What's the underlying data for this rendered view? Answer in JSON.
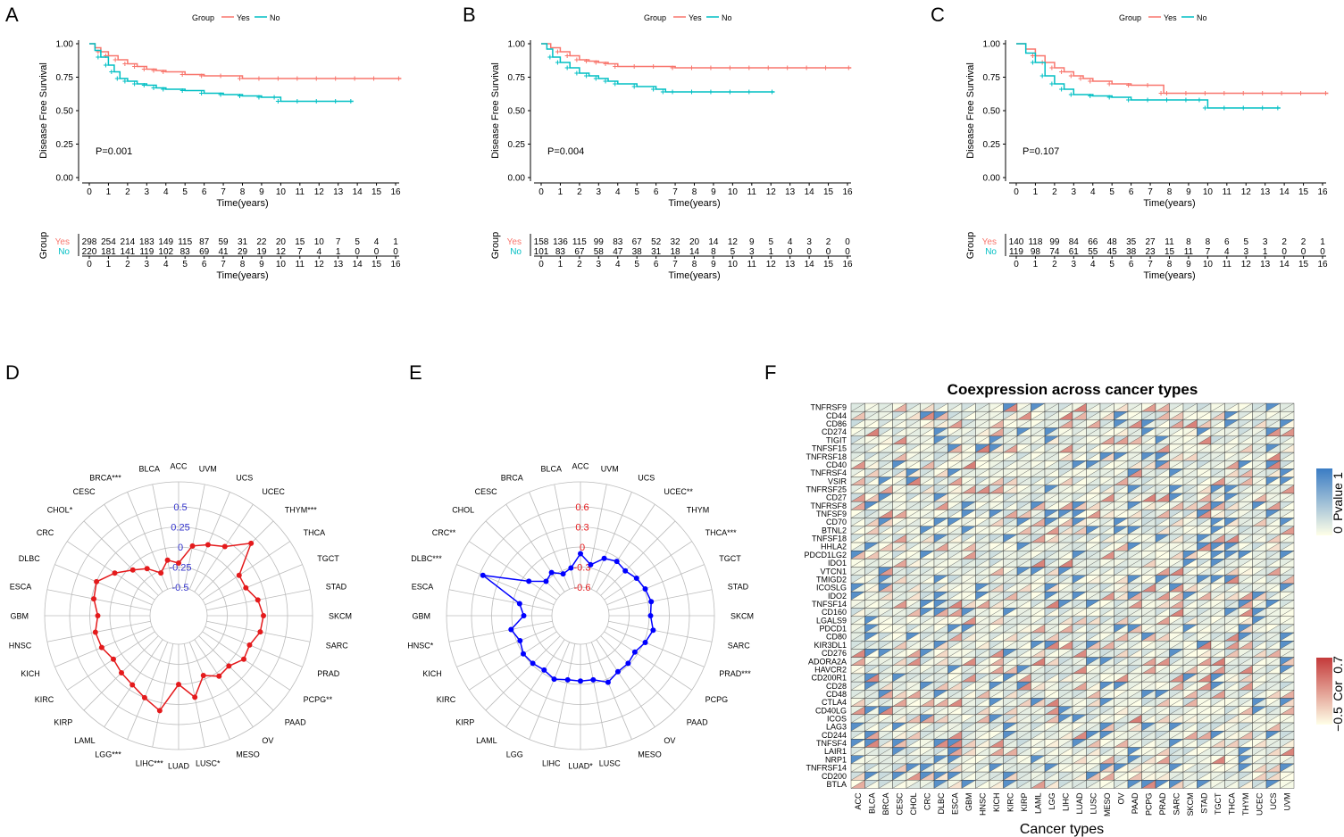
{
  "chart_data": [
    {
      "panel": "A",
      "type": "line",
      "subtype": "kaplan-meier",
      "legend": {
        "title": "Group",
        "entries": [
          {
            "name": "Yes",
            "color": "#F8766D"
          },
          {
            "name": "No",
            "color": "#00BFC4"
          }
        ],
        "position": "top"
      },
      "ylabel": "Disease Free Survival",
      "xlabel": "Time(years)",
      "ylim": [
        0,
        1
      ],
      "yticks": [
        "0.00",
        "0.25",
        "0.50",
        "0.75",
        "1.00"
      ],
      "xticks": [
        "0",
        "1",
        "2",
        "3",
        "4",
        "5",
        "6",
        "7",
        "8",
        "9",
        "10",
        "11",
        "12",
        "13",
        "14",
        "15",
        "16"
      ],
      "xlim": [
        0,
        16
      ],
      "pvalue": "P=0.001",
      "series": [
        {
          "name": "Yes",
          "color": "#F8766D",
          "x": [
            0,
            0.3,
            0.6,
            1,
            1.5,
            2,
            2.5,
            3,
            3.5,
            4,
            5,
            6,
            7,
            8,
            9,
            10,
            11,
            12,
            13,
            14,
            15,
            16.3
          ],
          "values": [
            1,
            0.97,
            0.94,
            0.91,
            0.88,
            0.85,
            0.83,
            0.81,
            0.8,
            0.79,
            0.77,
            0.76,
            0.76,
            0.74,
            0.74,
            0.74,
            0.74,
            0.74,
            0.74,
            0.74,
            0.74,
            0.74
          ]
        },
        {
          "name": "No",
          "color": "#00BFC4",
          "x": [
            0,
            0.3,
            0.6,
            1,
            1.3,
            1.6,
            2,
            2.5,
            3,
            3.5,
            4,
            5,
            6,
            7,
            8,
            9,
            9.8,
            10,
            11,
            12,
            13,
            13.8
          ],
          "values": [
            1,
            0.95,
            0.9,
            0.84,
            0.79,
            0.74,
            0.72,
            0.7,
            0.69,
            0.67,
            0.66,
            0.65,
            0.63,
            0.62,
            0.61,
            0.6,
            0.6,
            0.57,
            0.57,
            0.57,
            0.57,
            0.57
          ]
        }
      ],
      "risk_table": {
        "title": "Group",
        "yes": [
          "298",
          "254",
          "214",
          "183",
          "149",
          "115",
          "87",
          "59",
          "31",
          "22",
          "20",
          "15",
          "10",
          "7",
          "5",
          "4",
          "1"
        ],
        "no": [
          "220",
          "181",
          "141",
          "119",
          "102",
          "83",
          "69",
          "41",
          "29",
          "19",
          "12",
          "7",
          "4",
          "1",
          "0",
          "0",
          "0"
        ]
      }
    },
    {
      "panel": "B",
      "type": "line",
      "subtype": "kaplan-meier",
      "legend": {
        "title": "Group",
        "entries": [
          {
            "name": "Yes",
            "color": "#F8766D"
          },
          {
            "name": "No",
            "color": "#00BFC4"
          }
        ],
        "position": "top"
      },
      "ylabel": "Disease Free Survival",
      "xlabel": "Time(years)",
      "ylim": [
        0,
        1
      ],
      "yticks": [
        "0.00",
        "0.25",
        "0.50",
        "0.75",
        "1.00"
      ],
      "xticks": [
        "0",
        "1",
        "2",
        "3",
        "4",
        "5",
        "6",
        "7",
        "8",
        "9",
        "10",
        "11",
        "12",
        "13",
        "14",
        "15",
        "16"
      ],
      "xlim": [
        0,
        16
      ],
      "pvalue": "P=0.004",
      "series": [
        {
          "name": "Yes",
          "color": "#F8766D",
          "x": [
            0,
            0.5,
            1,
            1.5,
            2,
            2.5,
            3,
            3.5,
            4,
            5,
            6,
            7,
            8,
            9,
            10,
            11,
            12,
            13,
            14,
            15,
            16.2
          ],
          "values": [
            1,
            0.97,
            0.94,
            0.91,
            0.88,
            0.87,
            0.86,
            0.85,
            0.83,
            0.83,
            0.83,
            0.82,
            0.82,
            0.82,
            0.82,
            0.82,
            0.82,
            0.82,
            0.82,
            0.82,
            0.82
          ]
        },
        {
          "name": "No",
          "color": "#00BFC4",
          "x": [
            0,
            0.3,
            0.6,
            1,
            1.5,
            2,
            2.5,
            3,
            3.5,
            4,
            5,
            6,
            6.5,
            7,
            8,
            9,
            10,
            11,
            12.2
          ],
          "values": [
            1,
            0.96,
            0.9,
            0.86,
            0.82,
            0.78,
            0.76,
            0.74,
            0.72,
            0.7,
            0.68,
            0.66,
            0.64,
            0.64,
            0.64,
            0.64,
            0.64,
            0.64,
            0.64
          ]
        }
      ],
      "risk_table": {
        "title": "Group",
        "yes": [
          "158",
          "136",
          "115",
          "99",
          "83",
          "67",
          "52",
          "32",
          "20",
          "14",
          "12",
          "9",
          "5",
          "4",
          "3",
          "2",
          "0"
        ],
        "no": [
          "101",
          "83",
          "67",
          "58",
          "47",
          "38",
          "31",
          "18",
          "14",
          "8",
          "5",
          "3",
          "1",
          "0",
          "0",
          "0",
          "0"
        ]
      }
    },
    {
      "panel": "C",
      "type": "line",
      "subtype": "kaplan-meier",
      "legend": {
        "title": "Group",
        "entries": [
          {
            "name": "Yes",
            "color": "#F8766D"
          },
          {
            "name": "No",
            "color": "#00BFC4"
          }
        ],
        "position": "top"
      },
      "ylabel": "Disease Free Survival",
      "xlabel": "Time(years)",
      "ylim": [
        0,
        1
      ],
      "yticks": [
        "0.00",
        "0.25",
        "0.50",
        "0.75",
        "1.00"
      ],
      "xticks": [
        "0",
        "1",
        "2",
        "3",
        "4",
        "5",
        "6",
        "7",
        "8",
        "9",
        "10",
        "11",
        "12",
        "13",
        "14",
        "15",
        "16"
      ],
      "xlim": [
        0,
        16
      ],
      "pvalue": "P=0.107",
      "series": [
        {
          "name": "Yes",
          "color": "#F8766D",
          "x": [
            0,
            0.5,
            1,
            1.5,
            2,
            2.5,
            3,
            3.5,
            4,
            5,
            6,
            7,
            7.7,
            8,
            9,
            10,
            11,
            12,
            13,
            14,
            15,
            16.3
          ],
          "values": [
            1,
            0.96,
            0.91,
            0.86,
            0.82,
            0.79,
            0.76,
            0.74,
            0.72,
            0.7,
            0.69,
            0.69,
            0.63,
            0.63,
            0.63,
            0.63,
            0.63,
            0.63,
            0.63,
            0.63,
            0.63,
            0.63
          ]
        },
        {
          "name": "No",
          "color": "#00BFC4",
          "x": [
            0,
            0.5,
            1,
            1.5,
            2,
            2.5,
            3,
            4,
            5,
            6,
            7,
            8,
            9,
            9.7,
            10,
            11,
            12,
            13,
            13.8
          ],
          "values": [
            1,
            0.93,
            0.86,
            0.76,
            0.7,
            0.66,
            0.62,
            0.61,
            0.6,
            0.58,
            0.58,
            0.58,
            0.58,
            0.58,
            0.52,
            0.52,
            0.52,
            0.52,
            0.52
          ]
        }
      ],
      "risk_table": {
        "title": "Group",
        "yes": [
          "140",
          "118",
          "99",
          "84",
          "66",
          "48",
          "35",
          "27",
          "11",
          "8",
          "8",
          "6",
          "5",
          "3",
          "2",
          "2",
          "1"
        ],
        "no": [
          "119",
          "98",
          "74",
          "61",
          "55",
          "45",
          "38",
          "23",
          "15",
          "11",
          "7",
          "4",
          "3",
          "1",
          "0",
          "0",
          "0"
        ]
      }
    },
    {
      "panel": "D",
      "type": "radar",
      "color": "#E41A1C",
      "axis_color": "#3333CC",
      "rlim": [
        -0.5,
        0.5
      ],
      "ticks": [
        "0.5",
        "0.25",
        "0",
        "-0.25",
        "-0.5"
      ],
      "tick_values": [
        0.5,
        0.25,
        0,
        -0.25,
        -0.5
      ],
      "categories": [
        "ACC",
        "UVM",
        "UCS",
        "UCEC",
        "THYM***",
        "THCA",
        "TGCT",
        "STAD",
        "SKCM",
        "SARC",
        "PRAD",
        "PCPG**",
        "PAAD",
        "OV",
        "MESO",
        "LUSC*",
        "LUAD",
        "LIHC***",
        "LGG***",
        "LAML",
        "KIRP",
        "KIRC",
        "KICH",
        "HNSC",
        "GBM",
        "ESCA",
        "DLBC",
        "CRC",
        "CHOL*",
        "CESC",
        "BRCA***",
        "BLCA"
      ],
      "values": [
        -0.2,
        0.03,
        0.1,
        0.18,
        0.42,
        0.05,
        0.05,
        0.15,
        0.2,
        0.18,
        0.1,
        0.12,
        0.03,
        0.05,
        -0.05,
        0.18,
        0.0,
        0.35,
        0.25,
        0.18,
        0.15,
        0.12,
        0.18,
        0.2,
        0.15,
        0.22,
        0.25,
        0.1,
        -0.05,
        -0.15,
        -0.28,
        -0.15
      ]
    },
    {
      "panel": "E",
      "type": "radar",
      "color": "#0000FF",
      "axis_color": "#E41A1C",
      "rlim": [
        -0.6,
        0.6
      ],
      "ticks": [
        "0.6",
        "0.3",
        "0",
        "-0.3",
        "-0.6"
      ],
      "tick_values": [
        0.6,
        0.3,
        0,
        -0.3,
        -0.6
      ],
      "categories": [
        "ACC",
        "UVM",
        "UCS",
        "UCEC**",
        "THYM",
        "THCA***",
        "TGCT",
        "STAD",
        "SKCM",
        "SARC",
        "PRAD***",
        "PCPG",
        "PAAD",
        "OV",
        "MESO",
        "LUSC",
        "LUAD*",
        "LIHC",
        "LGG",
        "LAML",
        "KIRP",
        "KIRC",
        "KICH",
        "HNSC*",
        "GBM",
        "ESCA",
        "DLBC***",
        "CRC**",
        "CHOL",
        "CESC",
        "BRCA",
        "BLCA"
      ],
      "values": [
        -0.1,
        -0.25,
        -0.1,
        -0.05,
        -0.08,
        -0.02,
        0.02,
        0.05,
        0.02,
        0.08,
        0.02,
        -0.05,
        -0.02,
        -0.02,
        0.05,
        -0.05,
        -0.05,
        -0.05,
        0.0,
        -0.05,
        -0.02,
        0.0,
        -0.05,
        0.03,
        -0.18,
        -0.1,
        0.55,
        -0.1,
        -0.3,
        -0.25,
        -0.35,
        -0.3
      ]
    },
    {
      "panel": "F",
      "type": "heatmap",
      "title": "Coexpression across cancer types",
      "xlabel": "Cancer types",
      "rows": [
        "TNFRSF9",
        "CD44",
        "CD86",
        "CD274",
        "TIGIT",
        "TNFSF15",
        "TNFRSF18",
        "CD40",
        "TNFRSF4",
        "VSIR",
        "TNFRSF25",
        "CD27",
        "TNFRSF8",
        "TNFSF9",
        "CD70",
        "BTNL2",
        "TNFSF18",
        "HHLA2",
        "PDCD1LG2",
        "IDO1",
        "VTCN1",
        "TMIGD2",
        "ICOSLG",
        "IDO2",
        "TNFSF14",
        "CD160",
        "LGALS9",
        "PDCD1",
        "CD80",
        "KIR3DL1",
        "CD276",
        "ADORA2A",
        "HAVCR2",
        "CD200R1",
        "CD28",
        "CD48",
        "CTLA4",
        "CD40LG",
        "ICOS",
        "LAG3",
        "CD244",
        "TNFSF4",
        "LAIR1",
        "NRP1",
        "TNFRSF14",
        "CD200",
        "BTLA"
      ],
      "columns": [
        "ACC",
        "BLCA",
        "BRCA",
        "CESC",
        "CHOL",
        "CRC",
        "DLBC",
        "ESCA",
        "GBM",
        "HNSC",
        "KICH",
        "KIRC",
        "KIRP",
        "LAML",
        "LGG",
        "LIHC",
        "LUAD",
        "LUSC",
        "MESO",
        "OV",
        "PAAD",
        "PCPG",
        "PRAD",
        "SARC",
        "SKCM",
        "STAD",
        "TGCT",
        "THCA",
        "THYM",
        "UCEC",
        "UCS",
        "UVM"
      ],
      "legends": [
        {
          "title": "Pvalue",
          "min": "0",
          "max": "1",
          "colors": [
            "#FFFFE8",
            "#3A7CC4"
          ]
        },
        {
          "title": "Cor",
          "min": "−0.5",
          "max": "0.7",
          "colors": [
            "#FFFFE8",
            "#C43A3A"
          ]
        }
      ]
    }
  ],
  "panel_labels": [
    "A",
    "B",
    "C",
    "D",
    "E",
    "F"
  ]
}
